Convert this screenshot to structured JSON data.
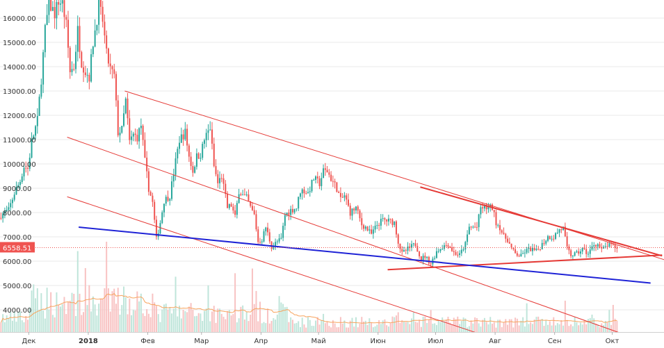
{
  "chart_data": {
    "type": "candlestick",
    "y_axis": {
      "ticks": [
        "4000.00",
        "5000.00",
        "6000.00",
        "7000.00",
        "8000.00",
        "9000.00",
        "10000.00",
        "11000.00",
        "12000.00",
        "13000.00",
        "14000.00",
        "15000.00",
        "16000.00"
      ],
      "range": [
        3200,
        16700
      ],
      "side": "left"
    },
    "x_axis": {
      "labels": [
        "Дек",
        "2018",
        "Фев",
        "Мар",
        "Апр",
        "Май",
        "Июн",
        "Июл",
        "Авг",
        "Сен",
        "Окт"
      ],
      "bold_labels": [
        "2018"
      ],
      "range": [
        "2017-11-16",
        "2018-10-28"
      ]
    },
    "last_price": {
      "label": "6558.51",
      "value": 6558.51,
      "color": "#ef5350"
    },
    "colors": {
      "up": "#26a69a",
      "down": "#ef5350",
      "volume_up": "#bfe5da",
      "volume_down": "#f8c2c2",
      "ma_line": "#f7a35c",
      "red_lines": "#e53935",
      "blue_line": "#1e22d6"
    },
    "price_path": [
      [
        "2017-11-16",
        7900
      ],
      [
        "2017-11-20",
        8100
      ],
      [
        "2017-11-23",
        8800
      ],
      [
        "2017-11-26",
        9300
      ],
      [
        "2017-11-28",
        9900
      ],
      [
        "2017-11-30",
        9800
      ],
      [
        "2017-12-02",
        10900
      ],
      [
        "2017-12-05",
        11800
      ],
      [
        "2017-12-07",
        13500
      ],
      [
        "2017-12-09",
        15500
      ],
      [
        "2017-12-11",
        16600
      ],
      [
        "2017-12-14",
        16200
      ],
      [
        "2017-12-16",
        16700
      ],
      [
        "2017-12-18",
        16600
      ],
      [
        "2017-12-20",
        15700
      ],
      [
        "2017-12-22",
        13800
      ],
      [
        "2017-12-24",
        14000
      ],
      [
        "2017-12-26",
        15500
      ],
      [
        "2017-12-28",
        14200
      ],
      [
        "2017-12-30",
        13800
      ],
      [
        "2018-01-01",
        13600
      ],
      [
        "2018-01-03",
        15000
      ],
      [
        "2018-01-06",
        16500
      ],
      [
        "2018-01-08",
        15900
      ],
      [
        "2018-01-10",
        14500
      ],
      [
        "2018-01-12",
        13900
      ],
      [
        "2018-01-14",
        13600
      ],
      [
        "2018-01-16",
        11300
      ],
      [
        "2018-01-18",
        11400
      ],
      [
        "2018-01-20",
        12600
      ],
      [
        "2018-01-22",
        10900
      ],
      [
        "2018-01-24",
        11200
      ],
      [
        "2018-01-26",
        11100
      ],
      [
        "2018-01-28",
        11600
      ],
      [
        "2018-01-30",
        10100
      ],
      [
        "2018-02-01",
        9000
      ],
      [
        "2018-02-03",
        8400
      ],
      [
        "2018-02-05",
        6900
      ],
      [
        "2018-02-07",
        7600
      ],
      [
        "2018-02-09",
        8500
      ],
      [
        "2018-02-12",
        8700
      ],
      [
        "2018-02-15",
        10100
      ],
      [
        "2018-02-17",
        11000
      ],
      [
        "2018-02-20",
        11300
      ],
      [
        "2018-02-22",
        10300
      ],
      [
        "2018-02-24",
        9700
      ],
      [
        "2018-02-26",
        10300
      ],
      [
        "2018-02-28",
        10400
      ],
      [
        "2018-03-02",
        11000
      ],
      [
        "2018-03-05",
        11500
      ],
      [
        "2018-03-07",
        9900
      ],
      [
        "2018-03-09",
        9200
      ],
      [
        "2018-03-11",
        9500
      ],
      [
        "2018-03-14",
        8200
      ],
      [
        "2018-03-16",
        8300
      ],
      [
        "2018-03-18",
        7800
      ],
      [
        "2018-03-20",
        8900
      ],
      [
        "2018-03-22",
        8700
      ],
      [
        "2018-03-24",
        8600
      ],
      [
        "2018-03-26",
        8200
      ],
      [
        "2018-03-28",
        7900
      ],
      [
        "2018-03-30",
        6800
      ],
      [
        "2018-04-01",
        6900
      ],
      [
        "2018-04-03",
        7400
      ],
      [
        "2018-04-06",
        6600
      ],
      [
        "2018-04-09",
        6800
      ],
      [
        "2018-04-11",
        6900
      ],
      [
        "2018-04-13",
        7900
      ],
      [
        "2018-04-16",
        8100
      ],
      [
        "2018-04-19",
        8200
      ],
      [
        "2018-04-21",
        8900
      ],
      [
        "2018-04-23",
        8900
      ],
      [
        "2018-04-25",
        8800
      ],
      [
        "2018-04-28",
        9400
      ],
      [
        "2018-05-01",
        9200
      ],
      [
        "2018-05-03",
        9700
      ],
      [
        "2018-05-05",
        9700
      ],
      [
        "2018-05-07",
        9400
      ],
      [
        "2018-05-10",
        9000
      ],
      [
        "2018-05-12",
        8500
      ],
      [
        "2018-05-14",
        8700
      ],
      [
        "2018-05-17",
        8000
      ],
      [
        "2018-05-20",
        8200
      ],
      [
        "2018-05-23",
        7500
      ],
      [
        "2018-05-25",
        7400
      ],
      [
        "2018-05-28",
        7100
      ],
      [
        "2018-05-31",
        7500
      ],
      [
        "2018-06-03",
        7700
      ],
      [
        "2018-06-06",
        7650
      ],
      [
        "2018-06-09",
        7600
      ],
      [
        "2018-06-11",
        6800
      ],
      [
        "2018-06-13",
        6300
      ],
      [
        "2018-06-16",
        6500
      ],
      [
        "2018-06-20",
        6700
      ],
      [
        "2018-06-23",
        6100
      ],
      [
        "2018-06-25",
        6200
      ],
      [
        "2018-06-28",
        5900
      ],
      [
        "2018-07-01",
        6400
      ],
      [
        "2018-07-04",
        6600
      ],
      [
        "2018-07-07",
        6700
      ],
      [
        "2018-07-10",
        6350
      ],
      [
        "2018-07-13",
        6250
      ],
      [
        "2018-07-16",
        6700
      ],
      [
        "2018-07-18",
        7400
      ],
      [
        "2018-07-20",
        7400
      ],
      [
        "2018-07-22",
        7400
      ],
      [
        "2018-07-24",
        8200
      ],
      [
        "2018-07-26",
        8200
      ],
      [
        "2018-07-28",
        8200
      ],
      [
        "2018-07-30",
        8200
      ],
      [
        "2018-08-01",
        7600
      ],
      [
        "2018-08-03",
        7400
      ],
      [
        "2018-08-05",
        7000
      ],
      [
        "2018-08-07",
        6900
      ],
      [
        "2018-08-09",
        6500
      ],
      [
        "2018-08-11",
        6300
      ],
      [
        "2018-08-14",
        6200
      ],
      [
        "2018-08-16",
        6400
      ],
      [
        "2018-08-19",
        6500
      ],
      [
        "2018-08-22",
        6400
      ],
      [
        "2018-08-25",
        6700
      ],
      [
        "2018-08-28",
        7000
      ],
      [
        "2018-08-31",
        7000
      ],
      [
        "2018-09-03",
        7300
      ],
      [
        "2018-09-05",
        7350
      ],
      [
        "2018-09-07",
        6500
      ],
      [
        "2018-09-09",
        6250
      ],
      [
        "2018-09-12",
        6300
      ],
      [
        "2018-09-15",
        6500
      ],
      [
        "2018-09-18",
        6300
      ],
      [
        "2018-09-21",
        6700
      ],
      [
        "2018-09-23",
        6700
      ],
      [
        "2018-09-25",
        6450
      ],
      [
        "2018-09-28",
        6650
      ],
      [
        "2018-10-01",
        6600
      ],
      [
        "2018-10-03",
        6558.51
      ]
    ],
    "trend_lines": [
      {
        "color": "#e53935",
        "width": 1,
        "points": [
          [
            "2018-01-20",
            13000
          ],
          [
            "2018-11-28",
            5300
          ]
        ]
      },
      {
        "color": "#e53935",
        "width": 1,
        "points": [
          [
            "2017-12-21",
            11100
          ],
          [
            "2018-10-14",
            2800
          ]
        ]
      },
      {
        "color": "#e53935",
        "width": 1,
        "points": [
          [
            "2017-12-21",
            8650
          ],
          [
            "2018-08-20",
            2300
          ]
        ]
      },
      {
        "color": "#e53935",
        "width": 2,
        "points": [
          [
            "2018-06-23",
            9050
          ],
          [
            "2018-10-27",
            6220
          ]
        ]
      },
      {
        "color": "#e53935",
        "width": 2,
        "points": [
          [
            "2018-06-06",
            5650
          ],
          [
            "2018-10-27",
            6250
          ]
        ]
      },
      {
        "color": "#1e22d6",
        "width": 2,
        "points": [
          [
            "2017-12-27",
            7400
          ],
          [
            "2018-10-21",
            5100
          ]
        ]
      }
    ]
  }
}
